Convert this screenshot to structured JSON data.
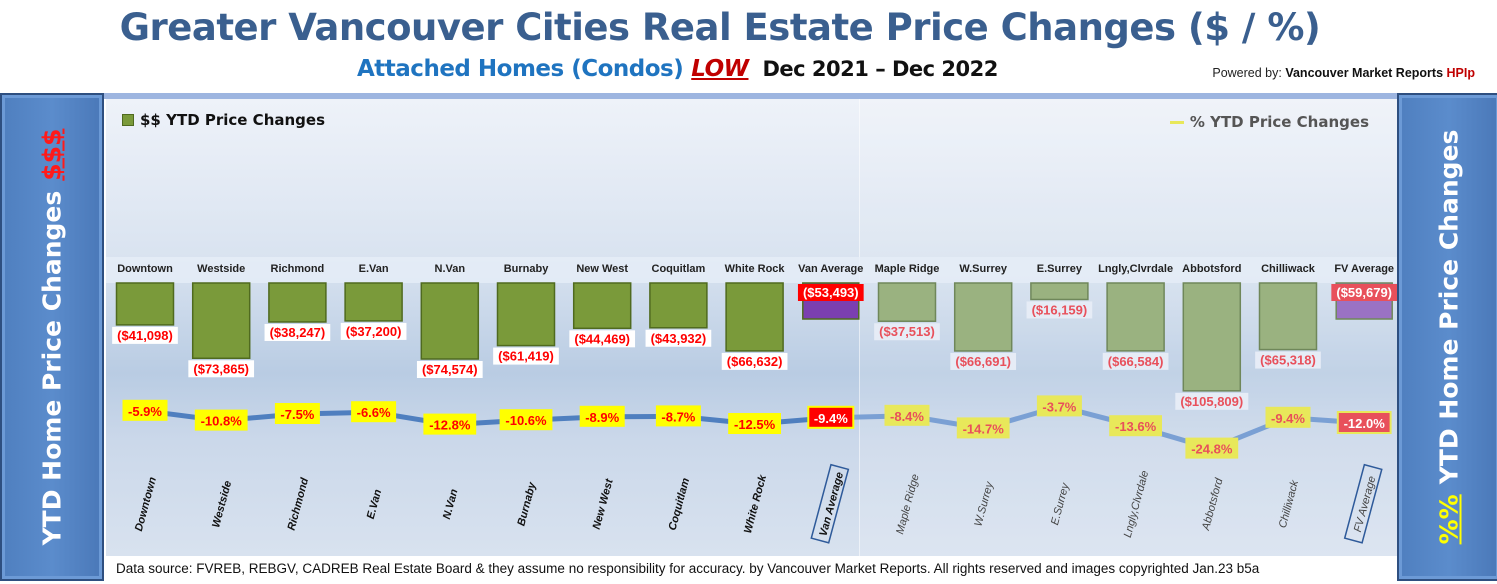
{
  "header": {
    "title": "Greater Vancouver Cities Real Estate Price Changes ($ / %)",
    "subtitle_main": "Attached Homes (Condos)",
    "subtitle_low": "LOW",
    "subtitle_period": "Dec 2021 – Dec 2022",
    "powered_prefix": "Powered by:",
    "powered_name": "Vancouver Market Reports",
    "powered_hpi": "HPIp"
  },
  "side_left": {
    "text": "YTD Home Price Changes",
    "accent": "$$$"
  },
  "side_right": {
    "accent": "%%",
    "text": "YTD Home Price  Changes"
  },
  "footer": {
    "text": "Data source: FVREB, REBGV, CADREB Real Estate Board & they assume no responsibility for accuracy. by Vancouver Market Reports. All rights reserved and  images copyrighted Jan.23 b5a"
  },
  "colors": {
    "van_bar": "#7a9a3a",
    "fv_bar": "#9ab280",
    "van_avg": "#7b3fb0",
    "fv_avg": "#9a72c4",
    "line": "#4f7fbf",
    "label_yellow": "#ffff00",
    "label_red": "#ff0000"
  },
  "chart_data": {
    "type": "bar+line",
    "legend": [
      {
        "name": "$$ YTD Price Changes",
        "placement": "top-left"
      },
      {
        "name": "% YTD Price Changes",
        "placement": "top-right"
      }
    ],
    "categories": [
      "Downtown",
      "Westside",
      "Richmond",
      "E.Van",
      "N.Van",
      "Burnaby",
      "New West",
      "Coquitlam",
      "White Rock",
      "Van Average",
      "Maple Ridge",
      "W.Surrey",
      "E.Surrey",
      "Lngly,Clvrdale",
      "Abbotsford",
      "Chilliwack",
      "FV Average"
    ],
    "series": [
      {
        "name": "$$ YTD Price Changes",
        "type": "bar",
        "values": [
          -41098,
          -73865,
          -38247,
          -37200,
          -74574,
          -61419,
          -44469,
          -43932,
          -66632,
          -53493,
          -37513,
          -66691,
          -16159,
          -66584,
          -105809,
          -65318,
          -59679
        ],
        "labels": [
          "($41,098)",
          "($73,865)",
          "($38,247)",
          "($37,200)",
          "($74,574)",
          "($61,419)",
          "($44,469)",
          "($43,932)",
          "($66,632)",
          "($53,493)",
          "($37,513)",
          "($66,691)",
          "($16,159)",
          "($66,584)",
          "($105,809)",
          "($65,318)",
          "($59,679)"
        ]
      },
      {
        "name": "% YTD Price Changes",
        "type": "line",
        "values": [
          -5.9,
          -10.8,
          -7.5,
          -6.6,
          -12.8,
          -10.6,
          -8.9,
          -8.7,
          -12.5,
          -9.4,
          -8.4,
          -14.7,
          -3.7,
          -13.6,
          -24.8,
          -9.4,
          -12.0
        ],
        "labels": [
          "-5.9%",
          "-10.8%",
          "-7.5%",
          "-6.6%",
          "-12.8%",
          "-10.6%",
          "-8.9%",
          "-8.7%",
          "-12.5%",
          "-9.4%",
          "-8.4%",
          "-14.7%",
          "-3.7%",
          "-13.6%",
          "-24.8%",
          "-9.4%",
          "-12.0%"
        ]
      }
    ],
    "ylim_bar": [
      -110000,
      0
    ],
    "grid": false
  }
}
